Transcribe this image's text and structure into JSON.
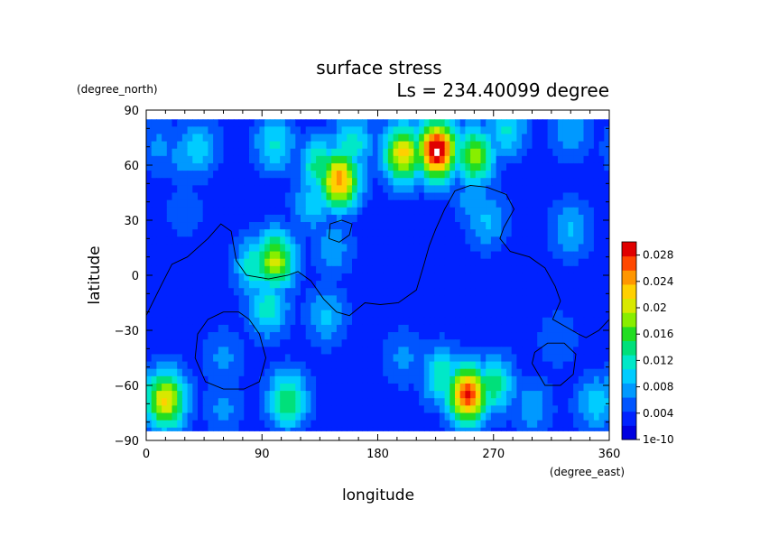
{
  "chart_data": {
    "type": "heatmap",
    "title": "surface stress",
    "subtitle": "Ls = 234.40099 degree",
    "xlabel": "longitude",
    "ylabel": "latitude",
    "x_units": "(degree_east)",
    "y_units": "(degree_north)",
    "xlim": [
      0,
      360
    ],
    "ylim": [
      -90,
      90
    ],
    "x_ticks": [
      "0",
      "90",
      "180",
      "270",
      "360"
    ],
    "x_tick_values": [
      0,
      90,
      180,
      270,
      360
    ],
    "y_ticks": [
      "90",
      "60",
      "30",
      "0",
      "−30",
      "−60",
      "−90"
    ],
    "y_tick_values": [
      90,
      60,
      30,
      0,
      -30,
      -60,
      -90
    ],
    "data_lat_range": [
      -85,
      85
    ],
    "background_value": 0.003,
    "colorbar": {
      "labels": [
        "0.028",
        "0.024",
        "0.02",
        "0.016",
        "0.012",
        "0.008",
        "0.004",
        "1e-10"
      ],
      "label_values": [
        0.028,
        0.024,
        0.02,
        0.016,
        0.012,
        0.008,
        0.004,
        0
      ],
      "min": 0,
      "max": 0.03,
      "colors": [
        "#0000e0",
        "#0022ff",
        "#0055ff",
        "#0099ff",
        "#00ccff",
        "#00e8c8",
        "#00e07a",
        "#22dd22",
        "#88ee00",
        "#d8e800",
        "#ffd000",
        "#ff9600",
        "#ff4800",
        "#e00000"
      ],
      "over_color": "#ffffff"
    },
    "features": [
      {
        "lon": 40,
        "lat": 70,
        "value": 0.01
      },
      {
        "lon": 100,
        "lat": 72,
        "value": 0.011
      },
      {
        "lon": 160,
        "lat": 72,
        "value": 0.012
      },
      {
        "lon": 225,
        "lat": 78,
        "value": 0.012
      },
      {
        "lon": 280,
        "lat": 80,
        "value": 0.011
      },
      {
        "lon": 330,
        "lat": 78,
        "value": 0.008
      },
      {
        "lon": 226,
        "lat": 68,
        "value": 0.031
      },
      {
        "lon": 200,
        "lat": 66,
        "value": 0.022
      },
      {
        "lon": 255,
        "lat": 65,
        "value": 0.018
      },
      {
        "lon": 150,
        "lat": 52,
        "value": 0.025
      },
      {
        "lon": 135,
        "lat": 60,
        "value": 0.014
      },
      {
        "lon": 130,
        "lat": 40,
        "value": 0.01
      },
      {
        "lon": 100,
        "lat": 8,
        "value": 0.02
      },
      {
        "lon": 85,
        "lat": 5,
        "value": 0.013
      },
      {
        "lon": 95,
        "lat": -18,
        "value": 0.012
      },
      {
        "lon": 140,
        "lat": -22,
        "value": 0.009
      },
      {
        "lon": 145,
        "lat": 15,
        "value": 0.008
      },
      {
        "lon": 30,
        "lat": 65,
        "value": 0.008
      },
      {
        "lon": 255,
        "lat": 42,
        "value": 0.008
      },
      {
        "lon": 265,
        "lat": 30,
        "value": 0.009
      },
      {
        "lon": 10,
        "lat": 70,
        "value": 0.007
      },
      {
        "lon": 250,
        "lat": -65,
        "value": 0.028
      },
      {
        "lon": 230,
        "lat": -55,
        "value": 0.013
      },
      {
        "lon": 270,
        "lat": -60,
        "value": 0.014
      },
      {
        "lon": 200,
        "lat": -45,
        "value": 0.007
      },
      {
        "lon": 15,
        "lat": -68,
        "value": 0.022
      },
      {
        "lon": 110,
        "lat": -68,
        "value": 0.015
      },
      {
        "lon": 350,
        "lat": -70,
        "value": 0.01
      },
      {
        "lon": 60,
        "lat": -72,
        "value": 0.007
      },
      {
        "lon": 300,
        "lat": -72,
        "value": 0.008
      },
      {
        "lon": 330,
        "lat": 25,
        "value": 0.009
      },
      {
        "lon": 30,
        "lat": 35,
        "value": 0.006
      },
      {
        "lon": 60,
        "lat": -45,
        "value": 0.007
      },
      {
        "lon": 320,
        "lat": -35,
        "value": 0.006
      }
    ],
    "contours": [
      [
        [
          0,
          -22
        ],
        [
          12,
          -5
        ],
        [
          20,
          6
        ],
        [
          32,
          10
        ],
        [
          48,
          20
        ],
        [
          58,
          28
        ],
        [
          66,
          24
        ],
        [
          70,
          8
        ],
        [
          78,
          0
        ],
        [
          95,
          -2
        ],
        [
          110,
          0
        ],
        [
          118,
          2
        ],
        [
          128,
          -3
        ],
        [
          138,
          -13
        ],
        [
          148,
          -20
        ],
        [
          158,
          -22
        ],
        [
          170,
          -15
        ],
        [
          182,
          -16
        ],
        [
          196,
          -15
        ],
        [
          210,
          -8
        ],
        [
          216,
          6
        ],
        [
          220,
          16
        ],
        [
          225,
          25
        ],
        [
          232,
          36
        ],
        [
          240,
          46
        ],
        [
          252,
          49
        ],
        [
          265,
          48
        ],
        [
          280,
          44
        ],
        [
          286,
          36
        ],
        [
          278,
          26
        ],
        [
          275,
          20
        ],
        [
          283,
          13
        ],
        [
          298,
          10
        ],
        [
          310,
          4
        ],
        [
          318,
          -6
        ],
        [
          322,
          -14
        ],
        [
          316,
          -24
        ],
        [
          326,
          -28
        ],
        [
          336,
          -32
        ],
        [
          342,
          -34
        ],
        [
          352,
          -30
        ],
        [
          360,
          -24
        ]
      ],
      [
        [
          60,
          -20
        ],
        [
          72,
          -20
        ],
        [
          80,
          -24
        ],
        [
          88,
          -32
        ],
        [
          93,
          -45
        ],
        [
          88,
          -58
        ],
        [
          76,
          -62
        ],
        [
          60,
          -62
        ],
        [
          46,
          -58
        ],
        [
          38,
          -45
        ],
        [
          40,
          -32
        ],
        [
          48,
          -24
        ],
        [
          60,
          -20
        ]
      ],
      [
        [
          142,
          20
        ],
        [
          150,
          18
        ],
        [
          158,
          22
        ],
        [
          160,
          28
        ],
        [
          152,
          30
        ],
        [
          143,
          28
        ],
        [
          142,
          20
        ]
      ],
      [
        [
          300,
          -48
        ],
        [
          310,
          -60
        ],
        [
          322,
          -60
        ],
        [
          332,
          -54
        ],
        [
          334,
          -43
        ],
        [
          325,
          -37
        ],
        [
          312,
          -37
        ],
        [
          302,
          -42
        ],
        [
          300,
          -48
        ]
      ]
    ]
  }
}
